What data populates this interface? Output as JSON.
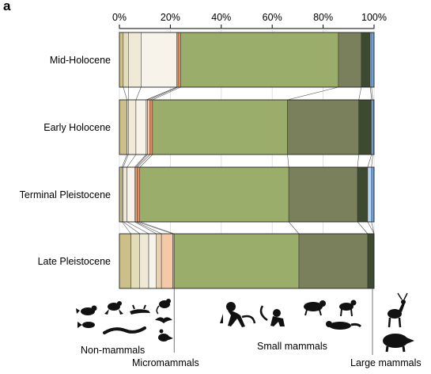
{
  "panel_label": "a",
  "chart_data": {
    "type": "bar",
    "orientation": "horizontal",
    "stacked": true,
    "percent_axis": true,
    "xlim": [
      0,
      100
    ],
    "x_ticks": [
      "0%",
      "20%",
      "40%",
      "60%",
      "80%",
      "100%"
    ],
    "x_tick_values": [
      0,
      20,
      40,
      60,
      80,
      100
    ],
    "axis_position": "top",
    "categories": [
      "Mid-Holocene",
      "Early Holocene",
      "Terminal Pleistocene",
      "Late Pleistocene"
    ],
    "segment_colors": [
      "#cbbf8a",
      "#e3dcb8",
      "#efe9d6",
      "#f7f3ea",
      "#e6d2b2",
      "#f5c8a8",
      "#e58a5c",
      "#9aad6a",
      "#7a7f5c",
      "#3d4a2f",
      "#b8d4f0",
      "#6f9fd4"
    ],
    "group_segments": {
      "non_mammals": [
        0,
        1,
        2,
        3,
        4
      ],
      "micromammals": [
        5,
        6
      ],
      "small_mammals": [
        7,
        8,
        9
      ],
      "large_mammals": [
        10,
        11
      ]
    },
    "bars": [
      {
        "category": "Mid-Holocene",
        "values": [
          1.5,
          2.0,
          5.0,
          14.0,
          0.0,
          0.5,
          1.0,
          62.0,
          9.0,
          3.5,
          0.5,
          1.0
        ]
      },
      {
        "category": "Early Holocene",
        "values": [
          3.0,
          0.5,
          3.0,
          4.0,
          0.5,
          1.0,
          1.0,
          53.0,
          28.0,
          5.0,
          0.5,
          0.5
        ]
      },
      {
        "category": "Terminal Pleistocene",
        "values": [
          1.0,
          0.5,
          1.5,
          3.0,
          0.5,
          0.5,
          1.0,
          58.5,
          27.0,
          4.0,
          1.5,
          1.0
        ]
      },
      {
        "category": "Late Pleistocene",
        "values": [
          4.5,
          3.5,
          3.5,
          3.0,
          2.0,
          4.5,
          0.5,
          49.0,
          27.0,
          2.5,
          0.0,
          0.0
        ]
      }
    ],
    "group_labels": {
      "non_mammals": "Non-mammals",
      "micromammals": "Micromammals",
      "small_mammals": "Small mammals",
      "large_mammals": "Large mammals"
    },
    "group_boundaries": [
      21.5,
      100
    ],
    "icons": {
      "non_mammals": [
        "bird-icon",
        "frog-icon",
        "lizard-icon",
        "snake-icon",
        "fish-icon"
      ],
      "micromammals": [
        "rodent-icon",
        "bat-icon",
        "shrew-icon"
      ],
      "small_mammals": [
        "monkey-icon",
        "small-monkey-icon",
        "agouti-icon",
        "deer-small-icon",
        "weasel-icon"
      ],
      "large_mammals": [
        "stag-icon",
        "peccary-icon"
      ]
    }
  }
}
